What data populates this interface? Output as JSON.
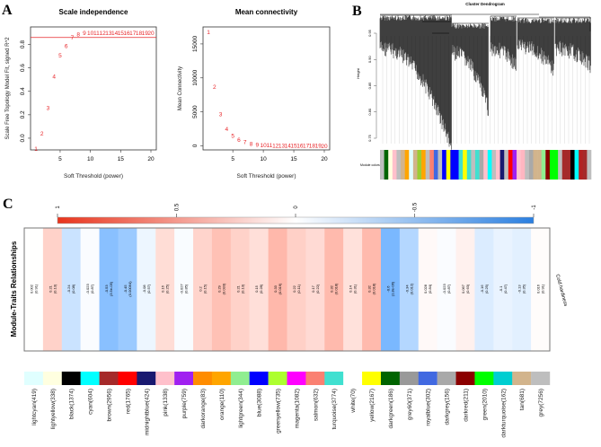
{
  "chart_data": [
    {
      "panel": "A",
      "type": "scatter",
      "title": "Scale independence",
      "xlabel": "Soft Threshold (power)",
      "ylabel": "Scale Free Topology Model Fit, signed R^2",
      "xlim": [
        1,
        20
      ],
      "ylim": [
        -0.1,
        0.95
      ],
      "xticks": [
        "5",
        "10",
        "15",
        "20"
      ],
      "yticks": [
        "0.0",
        "0.2",
        "0.4",
        "0.6",
        "0.8"
      ],
      "threshold_line": 0.86,
      "marker_color": "#e8262a",
      "x": [
        1,
        2,
        3,
        4,
        5,
        6,
        7,
        8,
        9,
        10,
        11,
        12,
        13,
        14,
        15,
        16,
        17,
        18,
        19,
        20
      ],
      "y": [
        -0.09,
        0.04,
        0.26,
        0.53,
        0.71,
        0.79,
        0.86,
        0.89,
        0.9,
        0.9,
        0.9,
        0.9,
        0.9,
        0.9,
        0.9,
        0.9,
        0.9,
        0.9,
        0.9,
        0.9
      ]
    },
    {
      "panel": "A",
      "type": "scatter",
      "title": "Mean connectivity",
      "xlabel": "Soft Threshold (power)",
      "ylabel": "Mean Connectivity",
      "xlim": [
        1,
        20
      ],
      "ylim": [
        -600,
        17500
      ],
      "xticks": [
        "5",
        "10",
        "15",
        "20"
      ],
      "yticks": [
        "0",
        "5000",
        "10000",
        "15000"
      ],
      "marker_color": "#e8262a",
      "x": [
        1,
        2,
        3,
        4,
        5,
        6,
        7,
        8,
        9,
        10,
        11,
        12,
        13,
        14,
        15,
        16,
        17,
        18,
        19,
        20
      ],
      "y": [
        16800,
        8700,
        4700,
        2500,
        1500,
        900,
        600,
        350,
        200,
        120,
        100,
        90,
        80,
        70,
        60,
        50,
        40,
        35,
        30,
        25
      ]
    },
    {
      "panel": "B",
      "type": "dendrogram",
      "title": "Cluster Dendrogram",
      "ylabel": "Height",
      "yticks": [
        "0.95",
        "0.90",
        "0.85",
        "0.80",
        "0.75"
      ],
      "ylim": [
        0.74,
        0.97
      ],
      "color_row_label": "Module colors",
      "module_color_sequence": [
        "#bebebe",
        "#006400",
        "#ffffe0",
        "#ffc0cb",
        "#bebebe",
        "#d2b48c",
        "#ffa500",
        "#e0ffff",
        "#d2b48c",
        "#9acd32",
        "#ffa500",
        "#bebebe",
        "#fa8072",
        "#4169e1",
        "#bebebe",
        "#0000ff",
        "#ffff00",
        "#0000ff",
        "#0000ff",
        "#40e0d0",
        "#ffff00",
        "#40e0d0",
        "#bebebe",
        "#40e0d0",
        "#a9a9a9",
        "#ffc0cb",
        "#00ffff",
        "#bebebe",
        "#ffc0cb",
        "#191970",
        "#bebebe",
        "#ff0000",
        "#a020f0",
        "#ffc0cb",
        "#ffb6c1",
        "#bebebe",
        "#a9a9a9",
        "#d2b48c",
        "#d2b48c",
        "#90ee90",
        "#8b0000",
        "#00ff00",
        "#00ff00",
        "#bebebe",
        "#a52a2a",
        "#a52a2a",
        "#000000",
        "#00ffff",
        "#b22222",
        "#a52a2a",
        "#bebebe"
      ]
    },
    {
      "panel": "C",
      "type": "heatmap",
      "ylabel": "Module-Traits Relationships",
      "trait": "Cold hardiness",
      "colorbar_ticks": [
        "1",
        "0.5",
        "0",
        "-0.5",
        "-1"
      ],
      "positive_color": "#ff2800",
      "negative_color": "#2189ff",
      "modules": [
        {
          "name": "lightcyan(419)",
          "color": "#e0ffff",
          "r": 0.002,
          "p": "(0.91)",
          "r_label": "0.002"
        },
        {
          "name": "lightyellow(338)",
          "color": "#ffffe0",
          "r": 0.21,
          "p": "(0.13)",
          "r_label": "0.21"
        },
        {
          "name": "black(1374)",
          "color": "#000000",
          "r": -0.24,
          "p": "(0.08)",
          "r_label": "-0.24"
        },
        {
          "name": "cyan(604)",
          "color": "#00ffff",
          "r": -0.023,
          "p": "(0.87)",
          "r_label": "-0.023"
        },
        {
          "name": "brown(2956)",
          "color": "#a52a2a",
          "r": -0.53,
          "p": "(3.5e-05)",
          "r_label": "-0.53"
        },
        {
          "name": "red(1765)",
          "color": "#ff0000",
          "r": -0.45,
          "p": "(0.00064)",
          "r_label": "-0.45"
        },
        {
          "name": "midnightblue(424)",
          "color": "#191970",
          "r": -0.08,
          "p": "(0.57)",
          "r_label": "-0.08"
        },
        {
          "name": "pink(1338)",
          "color": "#ffc0cb",
          "r": 0.16,
          "p": "(0.25)",
          "r_label": "0.16"
        },
        {
          "name": "purple(759)",
          "color": "#a020f0",
          "r": -0.027,
          "p": "(0.85)",
          "r_label": "-0.027"
        },
        {
          "name": "darkorange(83)",
          "color": "#ff8c00",
          "r": 0.2,
          "p": "(0.15)",
          "r_label": "0.2"
        },
        {
          "name": "orange(110)",
          "color": "#ffa500",
          "r": 0.29,
          "p": "(0.033)",
          "r_label": "0.29"
        },
        {
          "name": "lightgreen(344)",
          "color": "#90ee90",
          "r": 0.21,
          "p": "(0.13)",
          "r_label": "0.21"
        },
        {
          "name": "blue(3088)",
          "color": "#0000ff",
          "r": 0.15,
          "p": "(0.28)",
          "r_label": "0.15"
        },
        {
          "name": "greenyellow(735)",
          "color": "#adff2f",
          "r": 0.33,
          "p": "(0.016)",
          "r_label": "0.33"
        },
        {
          "name": "magenta(1082)",
          "color": "#ff00ff",
          "r": 0.22,
          "p": "(0.11)",
          "r_label": "0.22"
        },
        {
          "name": "salmon(632)",
          "color": "#fa8072",
          "r": 0.17,
          "p": "(0.22)",
          "r_label": "0.17"
        },
        {
          "name": "turquoise(3774)",
          "color": "#40e0d0",
          "r": 0.32,
          "p": "(0.018)",
          "r_label": "0.32"
        },
        {
          "name": "white(70)",
          "color": "#ffffff",
          "r": 0.14,
          "p": "(0.31)",
          "r_label": "0.14"
        },
        {
          "name": "yellow(2167)",
          "color": "#ffff00",
          "r": 0.32,
          "p": "(0.018)",
          "r_label": "0.32"
        },
        {
          "name": "darkgreen(186)",
          "color": "#006400",
          "r": -0.6,
          "p": "(1.8e-06)",
          "r_label": "-0.6"
        },
        {
          "name": "grey60(371)",
          "color": "#999999",
          "r": -0.34,
          "p": "(0.012)",
          "r_label": "-0.34"
        },
        {
          "name": "royalblue(302)",
          "color": "#4169e1",
          "r": 0.028,
          "p": "(0.84)",
          "r_label": "0.028"
        },
        {
          "name": "darkgrey(156)",
          "color": "#a9a9a9",
          "r": -0.023,
          "p": "(0.87)",
          "r_label": "-0.023"
        },
        {
          "name": "darkred(211)",
          "color": "#8b0000",
          "r": 0.067,
          "p": "(0.63)",
          "r_label": "0.067"
        },
        {
          "name": "green(2010)",
          "color": "#00ff00",
          "r": -0.16,
          "p": "(0.25)",
          "r_label": "-0.16"
        },
        {
          "name": "darkturquoise(162)",
          "color": "#00ced1",
          "r": -0.1,
          "p": "(0.47)",
          "r_label": "-0.1"
        },
        {
          "name": "tan(681)",
          "color": "#d2b48c",
          "r": -0.13,
          "p": "(0.35)",
          "r_label": "-0.13"
        },
        {
          "name": "grey(7256)",
          "color": "#bebebe",
          "r": 0.016,
          "p": "(0.91)",
          "r_label": "0.016"
        }
      ]
    }
  ],
  "panel_labels": {
    "a": "A",
    "b": "B",
    "c": "C"
  }
}
